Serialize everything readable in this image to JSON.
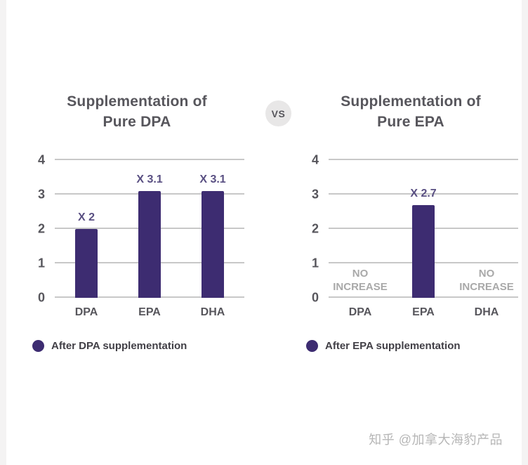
{
  "vs_label": "VS",
  "watermark": "知乎 @加拿大海豹产品",
  "colors": {
    "bar": "#3d2c71",
    "gridline": "#c8c8c8",
    "axis_text": "#57565c",
    "title_text": "#57565c",
    "value_label": "#594f82",
    "no_increase_text": "#a9a9a9",
    "legend_text": "#413f46",
    "vs_badge_bg": "#e8e7e7",
    "vs_badge_text": "#57565c",
    "watermark_text": "#b6b6b6"
  },
  "chart_data": [
    {
      "type": "bar",
      "title": "Supplementation of Pure DPA",
      "title_lines": [
        "Supplementation of",
        "Pure DPA"
      ],
      "categories": [
        "DPA",
        "EPA",
        "DHA"
      ],
      "values": [
        2,
        3.1,
        3.1
      ],
      "bar_labels": [
        "X 2",
        "X 3.1",
        "X 3.1"
      ],
      "legend": [
        "After DPA supplementation"
      ],
      "xlabel": "",
      "ylabel": "",
      "ylim": [
        0,
        4
      ],
      "yticks": [
        0,
        1,
        2,
        3,
        4
      ],
      "grid": true,
      "legend_position": "bottom-left"
    },
    {
      "type": "bar",
      "title": "Supplementation of Pure EPA",
      "title_lines": [
        "Supplementation of",
        "Pure EPA"
      ],
      "categories": [
        "DPA",
        "EPA",
        "DHA"
      ],
      "values": [
        0,
        2.7,
        0
      ],
      "bar_labels": [
        "NO INCREASE",
        "X 2.7",
        "NO INCREASE"
      ],
      "legend": [
        "After EPA supplementation"
      ],
      "xlabel": "",
      "ylabel": "",
      "ylim": [
        0,
        4
      ],
      "yticks": [
        0,
        1,
        2,
        3,
        4
      ],
      "grid": true,
      "legend_position": "bottom-left"
    }
  ]
}
